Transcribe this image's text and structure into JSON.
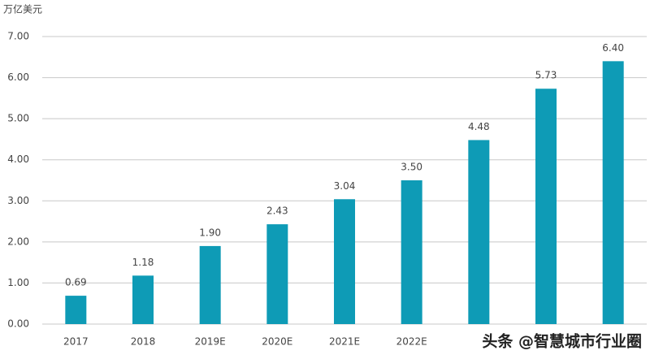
{
  "chart_data": {
    "type": "bar",
    "y_axis_label": "万亿美元",
    "categories": [
      "2017",
      "2018",
      "2019E",
      "2020E",
      "2021E",
      "2022E",
      null,
      null,
      null
    ],
    "values": [
      0.69,
      1.18,
      1.9,
      2.43,
      3.04,
      3.5,
      4.48,
      5.73,
      6.4
    ],
    "value_labels": [
      "0.69",
      "1.18",
      "1.90",
      "2.43",
      "3.04",
      "3.50",
      "4.48",
      "5.73",
      "6.40"
    ],
    "color": "#0e9bb6",
    "ylim": [
      0,
      7
    ],
    "yticks": [
      {
        "value": 0,
        "label": "0.00"
      },
      {
        "value": 1,
        "label": "1.00"
      },
      {
        "value": 2,
        "label": "2.00"
      },
      {
        "value": 3,
        "label": "3.00"
      },
      {
        "value": 4,
        "label": "4.00"
      },
      {
        "value": 5,
        "label": "5.00"
      },
      {
        "value": 6,
        "label": "6.00"
      },
      {
        "value": 7,
        "label": "7.00"
      }
    ],
    "grid": true,
    "watermark": "头条 @智慧城市行业圈"
  }
}
